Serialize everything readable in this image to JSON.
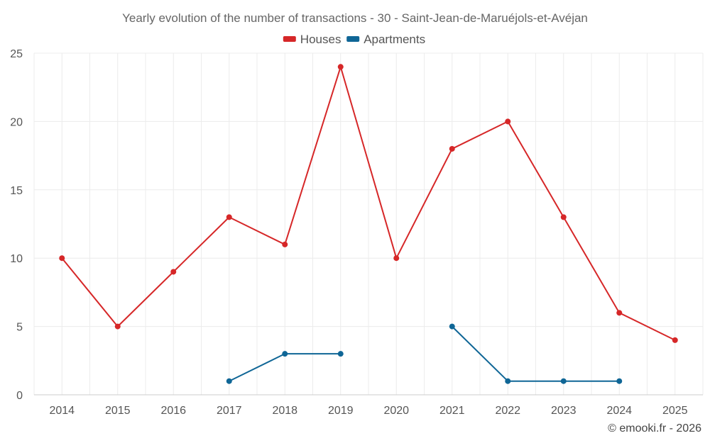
{
  "chart_data": {
    "type": "line",
    "title": "Yearly evolution of the number of transactions - 30 - Saint-Jean-de-Maruéjols-et-Avéjan",
    "categories": [
      "2014",
      "2015",
      "2016",
      "2017",
      "2018",
      "2019",
      "2020",
      "2021",
      "2022",
      "2023",
      "2024",
      "2025"
    ],
    "series": [
      {
        "name": "Houses",
        "color": "#d62728",
        "values": [
          10,
          5,
          9,
          13,
          11,
          24,
          10,
          18,
          20,
          13,
          6,
          4
        ]
      },
      {
        "name": "Apartments",
        "color": "#0f6696",
        "values": [
          null,
          null,
          null,
          1,
          3,
          3,
          null,
          5,
          1,
          1,
          1,
          null
        ]
      }
    ],
    "xlabel": "",
    "ylabel": "",
    "ylim": [
      0,
      25
    ],
    "yticks": [
      0,
      5,
      10,
      15,
      20,
      25
    ],
    "grid": true,
    "legend": "top-center"
  },
  "credit": "© emooki.fr - 2026"
}
